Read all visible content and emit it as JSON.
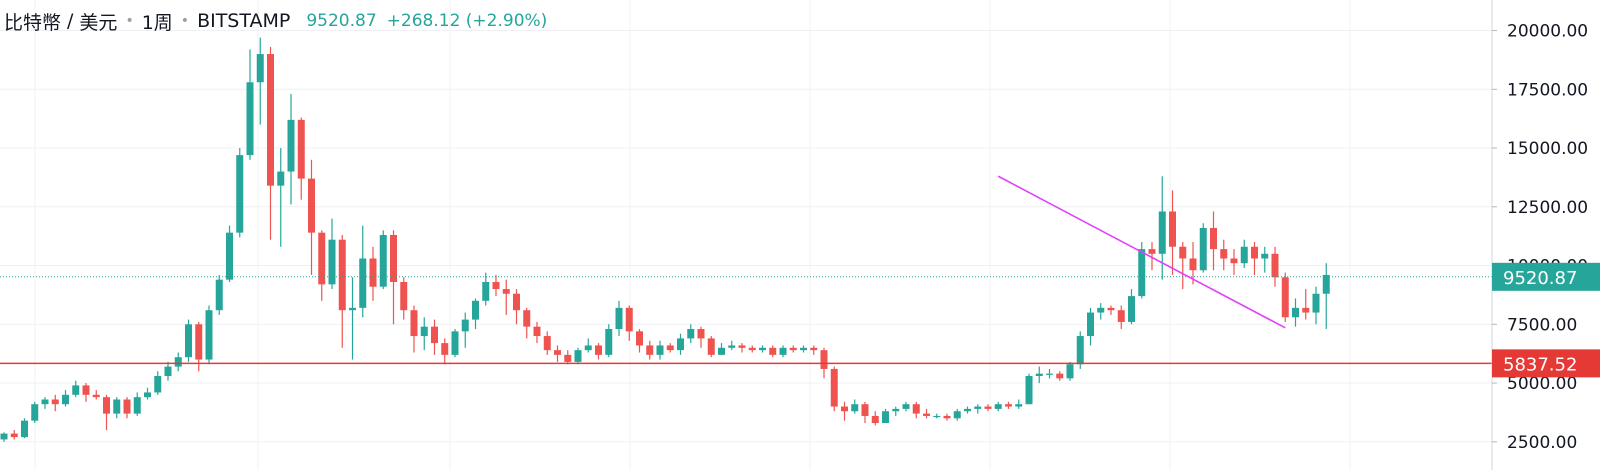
{
  "header": {
    "symbol": "比特幣",
    "separator": "/",
    "quote": "美元",
    "interval": "1周",
    "exchange": "BITSTAMP",
    "price": "9520.87",
    "change": "+268.12 (+2.90%)"
  },
  "colors": {
    "up": "#26a69a",
    "down": "#ef5350",
    "support_line": "#e53935",
    "trend_line": "#e040fb",
    "grid": "#eef0f3",
    "price_line": "#26a69a"
  },
  "chart_data": {
    "type": "candlestick",
    "ylim": [
      1300,
      21300
    ],
    "y_ticks": [
      "2500.00",
      "5000.00",
      "7500.00",
      "10000.00",
      "12500.00",
      "15000.00",
      "17500.00",
      "20000.00"
    ],
    "y_tick_values": [
      2500,
      5000,
      7500,
      10000,
      12500,
      15000,
      17500,
      20000
    ],
    "grid": true,
    "last_price": 9520.87,
    "last_price_label": "9520.87",
    "support_level": 5837.52,
    "support_label": "5837.52",
    "trendline": {
      "from_index": 97,
      "from_price": 13800,
      "to_index": 125,
      "to_price": 7350
    },
    "candles": [
      [
        2600,
        2850,
        2500,
        2900
      ],
      [
        2850,
        2700,
        2600,
        3000
      ],
      [
        2700,
        3400,
        2650,
        3500
      ],
      [
        3400,
        4100,
        3300,
        4200
      ],
      [
        4100,
        4300,
        3900,
        4400
      ],
      [
        4300,
        4100,
        3800,
        4500
      ],
      [
        4100,
        4500,
        4000,
        4700
      ],
      [
        4500,
        4900,
        4400,
        5100
      ],
      [
        4900,
        4500,
        4200,
        5000
      ],
      [
        4500,
        4400,
        4300,
        4700
      ],
      [
        4400,
        3700,
        3000,
        4500
      ],
      [
        3700,
        4300,
        3500,
        4400
      ],
      [
        4300,
        3700,
        3500,
        4400
      ],
      [
        3700,
        4400,
        3600,
        4600
      ],
      [
        4400,
        4600,
        4300,
        4800
      ],
      [
        4600,
        5300,
        4500,
        5500
      ],
      [
        5300,
        5700,
        5100,
        5900
      ],
      [
        5700,
        6100,
        5500,
        6300
      ],
      [
        6100,
        7500,
        5900,
        7700
      ],
      [
        7500,
        6000,
        5500,
        7600
      ],
      [
        6000,
        8100,
        5800,
        8300
      ],
      [
        8100,
        9400,
        7900,
        9600
      ],
      [
        9400,
        11400,
        9300,
        11700
      ],
      [
        11400,
        14700,
        11200,
        15000
      ],
      [
        14700,
        17800,
        14500,
        19200
      ],
      [
        17800,
        19000,
        16000,
        19700
      ],
      [
        19000,
        13400,
        11100,
        19300
      ],
      [
        13400,
        14000,
        10800,
        15000
      ],
      [
        14000,
        16200,
        12600,
        17300
      ],
      [
        16200,
        13700,
        12800,
        16300
      ],
      [
        13700,
        11400,
        9600,
        14500
      ],
      [
        11400,
        9200,
        8500,
        11500
      ],
      [
        9200,
        11100,
        9000,
        12000
      ],
      [
        11100,
        8100,
        6500,
        11300
      ],
      [
        8100,
        8200,
        6000,
        9500
      ],
      [
        8200,
        10300,
        7800,
        11700
      ],
      [
        10300,
        9100,
        8500,
        10800
      ],
      [
        9100,
        11300,
        9000,
        11500
      ],
      [
        11300,
        9300,
        7500,
        11500
      ],
      [
        9300,
        8100,
        7700,
        9500
      ],
      [
        8100,
        7000,
        6300,
        8300
      ],
      [
        7000,
        7400,
        6400,
        7800
      ],
      [
        7400,
        6700,
        6200,
        7700
      ],
      [
        6700,
        6200,
        5800,
        6900
      ],
      [
        6200,
        7200,
        6100,
        7300
      ],
      [
        7200,
        7700,
        6500,
        8000
      ],
      [
        7700,
        8500,
        7300,
        8600
      ],
      [
        8500,
        9300,
        8300,
        9700
      ],
      [
        9300,
        9000,
        8700,
        9600
      ],
      [
        9000,
        8800,
        7900,
        9400
      ],
      [
        8800,
        8100,
        7500,
        9000
      ],
      [
        8100,
        7400,
        6900,
        8200
      ],
      [
        7400,
        7000,
        6700,
        7600
      ],
      [
        7000,
        6400,
        6200,
        7200
      ],
      [
        6400,
        6200,
        5900,
        6600
      ],
      [
        6200,
        5900,
        5800,
        6400
      ],
      [
        5900,
        6400,
        5800,
        6500
      ],
      [
        6400,
        6600,
        6300,
        6900
      ],
      [
        6600,
        6200,
        6000,
        6700
      ],
      [
        6200,
        7300,
        6100,
        7500
      ],
      [
        7300,
        8200,
        7000,
        8500
      ],
      [
        8200,
        7200,
        6800,
        8300
      ],
      [
        7200,
        6600,
        6300,
        7300
      ],
      [
        6600,
        6200,
        6000,
        6800
      ],
      [
        6200,
        6600,
        6000,
        6800
      ],
      [
        6600,
        6400,
        6300,
        6700
      ],
      [
        6400,
        6900,
        6200,
        7100
      ],
      [
        6900,
        7300,
        6700,
        7500
      ],
      [
        7300,
        6900,
        6500,
        7400
      ],
      [
        6900,
        6200,
        6100,
        7000
      ],
      [
        6200,
        6500,
        6200,
        6700
      ],
      [
        6500,
        6600,
        6400,
        6800
      ],
      [
        6600,
        6500,
        6300,
        6700
      ],
      [
        6500,
        6400,
        6300,
        6600
      ],
      [
        6400,
        6500,
        6300,
        6600
      ],
      [
        6500,
        6200,
        6100,
        6600
      ],
      [
        6200,
        6500,
        6100,
        6600
      ],
      [
        6500,
        6400,
        6300,
        6600
      ],
      [
        6400,
        6500,
        6300,
        6600
      ],
      [
        6500,
        6400,
        6200,
        6600
      ],
      [
        6400,
        5600,
        5200,
        6500
      ],
      [
        5600,
        4000,
        3800,
        5700
      ],
      [
        4000,
        3800,
        3400,
        4200
      ],
      [
        3800,
        4100,
        3700,
        4300
      ],
      [
        4100,
        3600,
        3300,
        4200
      ],
      [
        3600,
        3300,
        3200,
        3800
      ],
      [
        3300,
        3800,
        3300,
        3900
      ],
      [
        3800,
        3900,
        3600,
        4000
      ],
      [
        3900,
        4100,
        3800,
        4200
      ],
      [
        4100,
        3700,
        3500,
        4200
      ],
      [
        3700,
        3600,
        3500,
        3900
      ],
      [
        3600,
        3600,
        3500,
        3700
      ],
      [
        3600,
        3500,
        3400,
        3700
      ],
      [
        3500,
        3800,
        3400,
        3900
      ],
      [
        3800,
        3900,
        3700,
        4000
      ],
      [
        3900,
        4000,
        3700,
        4100
      ],
      [
        4000,
        3900,
        3800,
        4100
      ],
      [
        3900,
        4100,
        3800,
        4200
      ],
      [
        4100,
        4000,
        3900,
        4200
      ],
      [
        4000,
        4100,
        3900,
        4300
      ],
      [
        4100,
        5300,
        4100,
        5400
      ],
      [
        5300,
        5400,
        5000,
        5700
      ],
      [
        5400,
        5400,
        5200,
        5600
      ],
      [
        5400,
        5200,
        5100,
        5500
      ],
      [
        5200,
        5800,
        5100,
        5900
      ],
      [
        5800,
        7000,
        5600,
        7200
      ],
      [
        7000,
        8000,
        6600,
        8200
      ],
      [
        8000,
        8200,
        7700,
        8400
      ],
      [
        8200,
        8100,
        7900,
        8300
      ],
      [
        8100,
        7600,
        7300,
        8300
      ],
      [
        7600,
        8700,
        7500,
        9000
      ],
      [
        8700,
        10700,
        8600,
        11000
      ],
      [
        10700,
        10500,
        9800,
        11000
      ],
      [
        10500,
        12300,
        9400,
        13800
      ],
      [
        12300,
        10800,
        9600,
        13200
      ],
      [
        10800,
        10300,
        9000,
        11000
      ],
      [
        10300,
        9800,
        9200,
        11000
      ],
      [
        9800,
        11600,
        9700,
        11800
      ],
      [
        11600,
        10700,
        9800,
        12300
      ],
      [
        10700,
        10300,
        9800,
        11100
      ],
      [
        10300,
        10100,
        9600,
        10700
      ],
      [
        10100,
        10800,
        9900,
        11100
      ],
      [
        10800,
        10300,
        9600,
        11000
      ],
      [
        10300,
        10500,
        9700,
        10800
      ],
      [
        10500,
        9500,
        9100,
        10800
      ],
      [
        9500,
        7800,
        7600,
        9700
      ],
      [
        7800,
        8200,
        7400,
        8600
      ],
      [
        8200,
        8000,
        7700,
        9000
      ],
      [
        8000,
        8800,
        7500,
        9100
      ],
      [
        8800,
        9600,
        7300,
        10100
      ]
    ]
  }
}
